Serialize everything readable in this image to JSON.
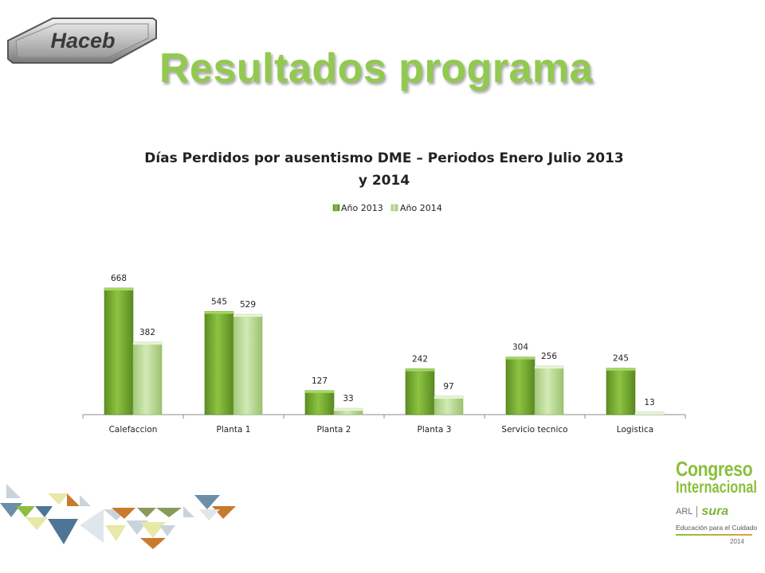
{
  "header": {
    "logo_text": "Haceb",
    "title": "Resultados programa"
  },
  "chart_data": {
    "type": "bar",
    "title_lines": [
      "Días Perdidos por ausentismo DME – Periodos Enero Julio 2013",
      "y 2014"
    ],
    "categories": [
      "Calefaccion",
      "Planta 1",
      "Planta 2",
      "Planta 3",
      "Servicio tecnico",
      "Logistica"
    ],
    "series": [
      {
        "name": "Año 2013",
        "values": [
          668,
          545,
          127,
          242,
          304,
          245
        ],
        "color": "#7aae32"
      },
      {
        "name": "Año 2014",
        "values": [
          382,
          529,
          33,
          97,
          256,
          13
        ],
        "color": "#b5d98a"
      }
    ],
    "ylim": [
      0,
      668
    ],
    "legend_position": "top",
    "data_labels": true,
    "grid": false
  },
  "branding": {
    "line1": "Congreso",
    "line2": "Internacional",
    "arl": "ARL",
    "sura": "sura",
    "tagline": "Educación para el Cuidado",
    "year": "2014"
  }
}
